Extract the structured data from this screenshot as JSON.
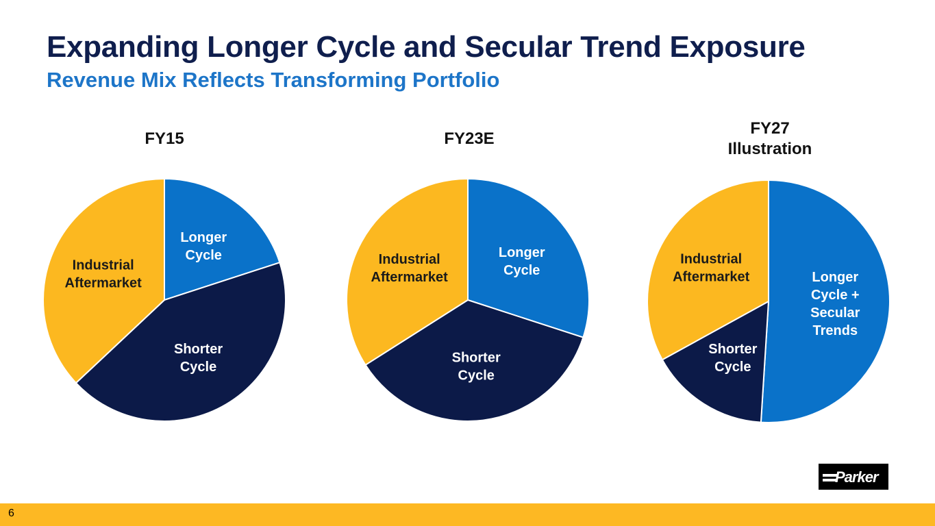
{
  "header": {
    "title": "Expanding Longer Cycle and Secular Trend Exposure",
    "subtitle": "Revenue Mix Reflects Transforming Portfolio"
  },
  "colors": {
    "longer_cycle": "#0a72c9",
    "shorter_cycle": "#0c1a48",
    "industrial_aftermarket": "#fcb820",
    "footer": "#fdb823",
    "title": "#0f1e4d",
    "subtitle": "#1d75c8"
  },
  "chart_data": [
    {
      "type": "pie",
      "title": "FY15",
      "title_lines": [
        "FY15"
      ],
      "slices": [
        {
          "label": "Longer Cycle",
          "label_lines": [
            "Longer",
            "Cycle"
          ],
          "value": 20,
          "color": "#0a72c9",
          "text_color": "#ffffff"
        },
        {
          "label": "Shorter Cycle",
          "label_lines": [
            "Shorter",
            "Cycle"
          ],
          "value": 43,
          "color": "#0c1a48",
          "text_color": "#ffffff"
        },
        {
          "label": "Industrial Aftermarket",
          "label_lines": [
            "Industrial",
            "Aftermarket"
          ],
          "value": 37,
          "color": "#fcb820",
          "text_color": "#1a1a1a"
        }
      ]
    },
    {
      "type": "pie",
      "title": "FY23E",
      "title_lines": [
        "FY23E"
      ],
      "slices": [
        {
          "label": "Longer Cycle",
          "label_lines": [
            "Longer",
            "Cycle"
          ],
          "value": 30,
          "color": "#0a72c9",
          "text_color": "#ffffff"
        },
        {
          "label": "Shorter Cycle",
          "label_lines": [
            "Shorter",
            "Cycle"
          ],
          "value": 36,
          "color": "#0c1a48",
          "text_color": "#ffffff"
        },
        {
          "label": "Industrial Aftermarket",
          "label_lines": [
            "Industrial",
            "Aftermarket"
          ],
          "value": 34,
          "color": "#fcb820",
          "text_color": "#1a1a1a"
        }
      ]
    },
    {
      "type": "pie",
      "title": "FY27 Illustration",
      "title_lines": [
        "FY27",
        "Illustration"
      ],
      "slices": [
        {
          "label": "Longer Cycle + Secular Trends",
          "label_lines": [
            "Longer",
            "Cycle +",
            "Secular",
            "Trends"
          ],
          "value": 51,
          "color": "#0a72c9",
          "text_color": "#ffffff"
        },
        {
          "label": "Shorter Cycle",
          "label_lines": [
            "Shorter",
            "Cycle"
          ],
          "value": 16,
          "color": "#0c1a48",
          "text_color": "#ffffff"
        },
        {
          "label": "Industrial Aftermarket",
          "label_lines": [
            "Industrial",
            "Aftermarket"
          ],
          "value": 33,
          "color": "#fcb820",
          "text_color": "#1a1a1a"
        }
      ]
    }
  ],
  "footer": {
    "page_number": "6",
    "logo_text": "Parker"
  }
}
